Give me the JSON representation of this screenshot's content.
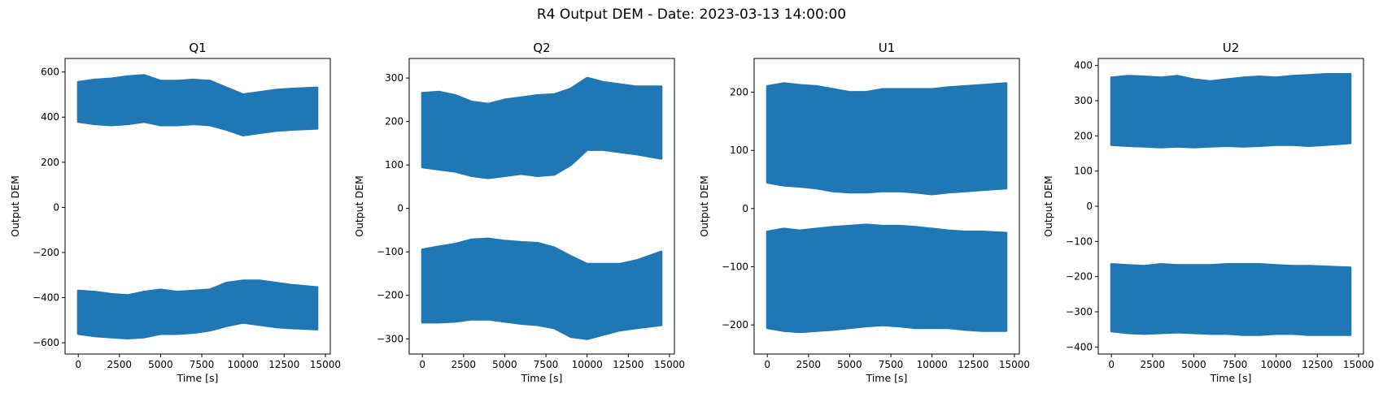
{
  "figure": {
    "suptitle": "R4 Output DEM - Date: 2023-03-13 14:00:00"
  },
  "colors": {
    "series": "#1f77b4",
    "axes": "#000000",
    "background": "#ffffff"
  },
  "chart_data": [
    {
      "type": "scatter",
      "title": "Q1",
      "xlabel": "Time [s]",
      "ylabel": "Output DEM",
      "marker": "star",
      "xlim": [
        -800,
        15300
      ],
      "ylim": [
        -650,
        660
      ],
      "xticks": [
        0,
        2500,
        5000,
        7500,
        10000,
        12500,
        15000
      ],
      "yticks": [
        -600,
        -400,
        -200,
        0,
        200,
        400,
        600
      ],
      "series": [
        {
          "x": [
            0,
            1000,
            2000,
            3000,
            4000,
            5000,
            6000,
            7000,
            8000,
            9000,
            10000,
            11000,
            12000,
            13000,
            14500
          ],
          "upper": [
            555,
            565,
            570,
            580,
            585,
            560,
            560,
            565,
            560,
            530,
            500,
            510,
            520,
            525,
            530
          ],
          "lower": [
            380,
            370,
            365,
            370,
            380,
            365,
            365,
            370,
            365,
            345,
            320,
            330,
            340,
            345,
            350
          ]
        },
        {
          "x": [
            0,
            1000,
            2000,
            3000,
            4000,
            5000,
            6000,
            7000,
            8000,
            9000,
            10000,
            11000,
            12000,
            13000,
            14500
          ],
          "upper": [
            -370,
            -375,
            -385,
            -390,
            -375,
            -365,
            -375,
            -370,
            -365,
            -335,
            -325,
            -325,
            -335,
            -345,
            -355
          ],
          "lower": [
            -560,
            -570,
            -575,
            -580,
            -575,
            -560,
            -560,
            -555,
            -545,
            -525,
            -510,
            -520,
            -530,
            -535,
            -540
          ]
        }
      ]
    },
    {
      "type": "scatter",
      "title": "Q2",
      "xlabel": "Time [s]",
      "ylabel": "Output DEM",
      "marker": "star",
      "xlim": [
        -800,
        15300
      ],
      "ylim": [
        -335,
        345
      ],
      "xticks": [
        0,
        2500,
        5000,
        7500,
        10000,
        12500,
        15000
      ],
      "yticks": [
        -300,
        -200,
        -100,
        0,
        100,
        200,
        300
      ],
      "series": [
        {
          "x": [
            0,
            1000,
            2000,
            3000,
            4000,
            5000,
            6000,
            7000,
            8000,
            9000,
            10000,
            11000,
            12000,
            13000,
            14500
          ],
          "upper": [
            265,
            268,
            260,
            245,
            240,
            250,
            255,
            260,
            262,
            275,
            300,
            290,
            285,
            280,
            280
          ],
          "lower": [
            95,
            90,
            85,
            75,
            70,
            75,
            80,
            75,
            78,
            100,
            135,
            135,
            130,
            125,
            115
          ]
        },
        {
          "x": [
            0,
            1000,
            2000,
            3000,
            4000,
            5000,
            6000,
            7000,
            8000,
            9000,
            10000,
            11000,
            12000,
            13000,
            14500
          ],
          "upper": [
            -95,
            -88,
            -82,
            -72,
            -70,
            -75,
            -78,
            -80,
            -90,
            -110,
            -128,
            -128,
            -128,
            -120,
            -100
          ],
          "lower": [
            -262,
            -262,
            -260,
            -255,
            -255,
            -260,
            -265,
            -268,
            -275,
            -295,
            -300,
            -290,
            -280,
            -275,
            -268
          ]
        }
      ]
    },
    {
      "type": "scatter",
      "title": "U1",
      "xlabel": "Time [s]",
      "ylabel": "Output DEM",
      "marker": "star",
      "xlim": [
        -800,
        15300
      ],
      "ylim": [
        -250,
        258
      ],
      "xticks": [
        0,
        2500,
        5000,
        7500,
        10000,
        12500,
        15000
      ],
      "yticks": [
        -200,
        -100,
        0,
        100,
        200
      ],
      "series": [
        {
          "x": [
            0,
            1000,
            2000,
            3000,
            4000,
            5000,
            6000,
            7000,
            8000,
            9000,
            10000,
            11000,
            12000,
            13000,
            14500
          ],
          "upper": [
            210,
            215,
            212,
            210,
            205,
            200,
            200,
            205,
            205,
            205,
            205,
            208,
            210,
            212,
            215
          ],
          "lower": [
            45,
            40,
            38,
            35,
            30,
            28,
            28,
            30,
            30,
            28,
            25,
            28,
            30,
            32,
            35
          ]
        },
        {
          "x": [
            0,
            1000,
            2000,
            3000,
            4000,
            5000,
            6000,
            7000,
            8000,
            9000,
            10000,
            11000,
            12000,
            13000,
            14500
          ],
          "upper": [
            -40,
            -35,
            -38,
            -35,
            -32,
            -30,
            -28,
            -30,
            -30,
            -32,
            -35,
            -38,
            -40,
            -40,
            -42
          ],
          "lower": [
            -205,
            -210,
            -212,
            -210,
            -208,
            -205,
            -202,
            -200,
            -202,
            -205,
            -205,
            -205,
            -208,
            -210,
            -210
          ]
        }
      ]
    },
    {
      "type": "scatter",
      "title": "U2",
      "xlabel": "Time [s]",
      "ylabel": "Output DEM",
      "marker": "star",
      "xlim": [
        -800,
        15300
      ],
      "ylim": [
        -420,
        420
      ],
      "xticks": [
        0,
        2500,
        5000,
        7500,
        10000,
        12500,
        15000
      ],
      "yticks": [
        -400,
        -300,
        -200,
        -100,
        0,
        100,
        200,
        300,
        400
      ],
      "series": [
        {
          "x": [
            0,
            1000,
            2000,
            3000,
            4000,
            5000,
            6000,
            7000,
            8000,
            9000,
            10000,
            11000,
            12000,
            13000,
            14500
          ],
          "upper": [
            365,
            370,
            368,
            365,
            370,
            360,
            355,
            360,
            365,
            368,
            365,
            370,
            372,
            375,
            375
          ],
          "lower": [
            175,
            172,
            170,
            168,
            170,
            168,
            170,
            172,
            170,
            172,
            175,
            175,
            172,
            175,
            180
          ]
        },
        {
          "x": [
            0,
            1000,
            2000,
            3000,
            4000,
            5000,
            6000,
            7000,
            8000,
            9000,
            10000,
            11000,
            12000,
            13000,
            14500
          ],
          "upper": [
            -165,
            -168,
            -170,
            -165,
            -168,
            -168,
            -168,
            -165,
            -165,
            -165,
            -168,
            -170,
            -170,
            -172,
            -175
          ],
          "lower": [
            -355,
            -360,
            -362,
            -360,
            -358,
            -360,
            -362,
            -362,
            -365,
            -365,
            -362,
            -362,
            -365,
            -365,
            -365
          ]
        }
      ]
    }
  ]
}
